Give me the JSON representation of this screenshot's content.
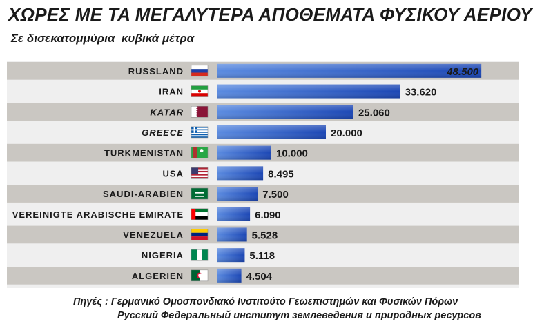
{
  "title": "ΧΩΡΕΣ ΜΕ ΤΑ ΜΕΓΑΛΥΤΕΡΑ ΑΠΟΘΕΜΑΤΑ ΦΥΣΙΚΟΥ ΑΕΡΙΟΥ",
  "subtitle": "Σε δισεκατομμύρια  κυβικά μέτρα",
  "chart_data": {
    "type": "bar",
    "orientation": "horizontal",
    "categories": [
      "RUSSLAND",
      "IRAN",
      "KATAR",
      "GREECE",
      "TURKMENISTAN",
      "USA",
      "SAUDI-ARABIEN",
      "VEREINIGTE ARABISCHE EMIRATE",
      "VENEZUELA",
      "NIGERIA",
      "ALGERIEN"
    ],
    "values": [
      48500,
      33620,
      25060,
      20000,
      10000,
      8495,
      7500,
      6090,
      5528,
      5118,
      4504
    ],
    "value_labels": [
      "48.500",
      "33.620",
      "25.060",
      "20.000",
      "10.000",
      "8.495",
      "7.500",
      "6.090",
      "5.528",
      "5.118",
      "4.504"
    ],
    "italic_categories": [
      "KATAR",
      "GREECE"
    ],
    "flags": [
      "russia-flag",
      "iran-flag",
      "qatar-flag",
      "greece-flag",
      "turkmenistan-flag",
      "usa-flag",
      "saudi-arabia-flag",
      "uae-flag",
      "venezuela-flag",
      "nigeria-flag",
      "algeria-flag"
    ],
    "xlim": [
      0,
      50000
    ],
    "colors": {
      "bar_light": "#5b8be0",
      "bar_dark": "#1b46b4",
      "stripe": "#cac7c2"
    },
    "legend": "none",
    "grid": false
  },
  "sources": {
    "line1": "Πηγές : Γερμανικό Ομοσπονδιακό Ινστιτούτο Γεωεπιστημών και Φυσικών Πόρων",
    "line2": "Русский Федеральный институт землеведения и природных ресурсов"
  }
}
